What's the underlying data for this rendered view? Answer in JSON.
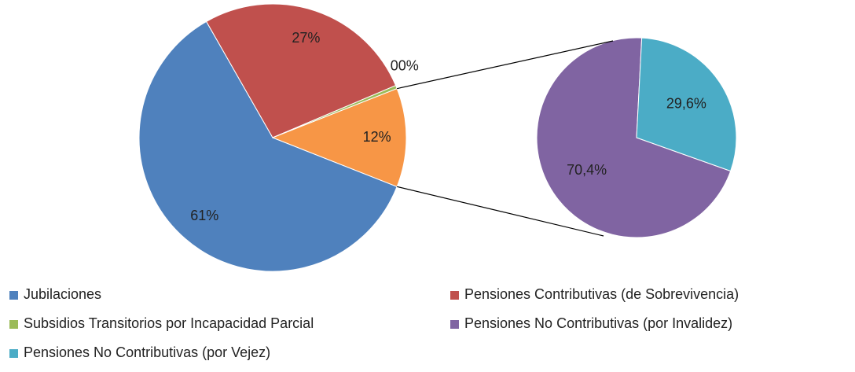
{
  "chart_data": {
    "type": "pie",
    "categories": [
      "Jubilaciones",
      "Pensiones Contributivas (de Sobrevivencia)",
      "Subsidios Transitorios por Incapacidad Parcial",
      null
    ],
    "values": [
      61,
      27,
      0.4,
      12
    ],
    "value_labels": [
      "61%",
      "27%",
      "00%",
      "12%"
    ],
    "colors": [
      "#4f81bd",
      "#c0504d",
      "#9bbb59",
      "#f79646"
    ],
    "secondary": {
      "categories": [
        "Pensiones No Contributivas (por Invalidez)",
        "Pensiones No Contributivas (por Vejez)"
      ],
      "values": [
        70.4,
        29.6
      ],
      "value_labels": [
        "70,4%",
        "29,6%"
      ],
      "colors": [
        "#8064a2",
        "#4bacc6"
      ]
    }
  }
}
